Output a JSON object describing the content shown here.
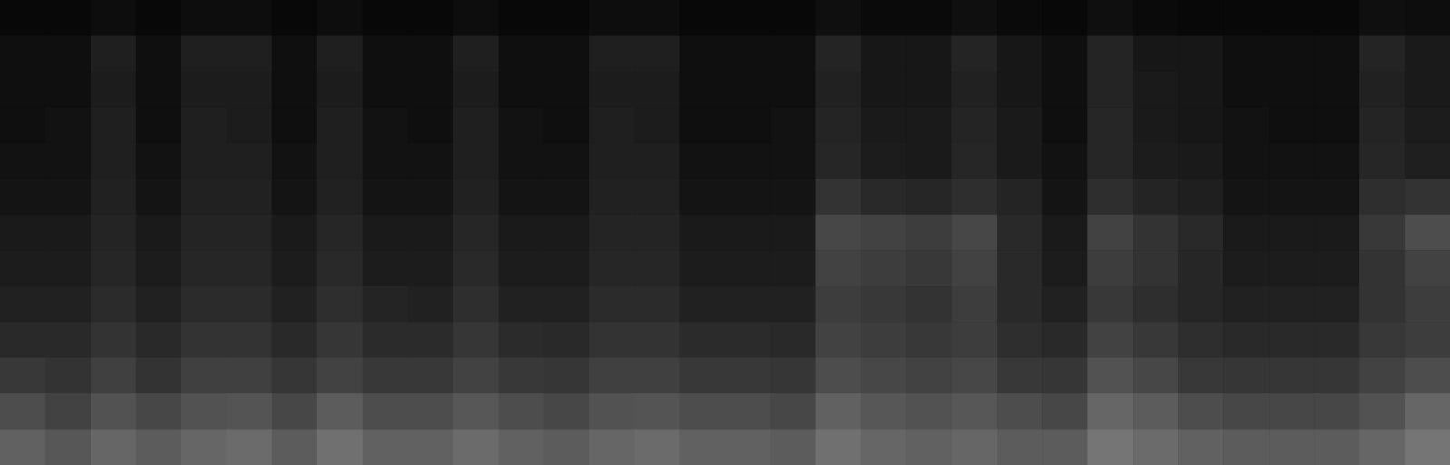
{
  "chart_data": {
    "type": "heatmap",
    "tick_labels": false,
    "zlim": [
      0,
      100
    ],
    "z": [
      [
        3,
        3,
        5,
        3,
        5,
        5,
        3,
        5,
        3,
        3,
        5,
        3,
        3,
        5,
        5,
        3,
        3,
        3,
        6,
        4,
        4,
        6,
        4,
        3,
        6,
        4,
        3,
        3,
        3,
        3,
        6,
        5
      ],
      [
        6,
        6,
        12,
        6,
        12,
        12,
        6,
        12,
        6,
        6,
        12,
        6,
        6,
        12,
        12,
        6,
        6,
        6,
        14,
        9,
        9,
        14,
        9,
        6,
        14,
        9,
        9,
        6,
        6,
        6,
        14,
        10
      ],
      [
        6,
        6,
        11,
        6,
        11,
        11,
        6,
        11,
        6,
        6,
        11,
        6,
        6,
        11,
        11,
        6,
        6,
        6,
        13,
        9,
        9,
        13,
        9,
        6,
        14,
        10,
        9,
        6,
        6,
        6,
        13,
        10
      ],
      [
        6,
        7,
        12,
        6,
        12,
        11,
        6,
        12,
        7,
        6,
        12,
        7,
        6,
        12,
        11,
        6,
        6,
        7,
        14,
        10,
        10,
        14,
        10,
        6,
        15,
        10,
        9,
        7,
        6,
        6,
        14,
        11
      ],
      [
        7,
        7,
        12,
        7,
        12,
        12,
        7,
        12,
        7,
        7,
        12,
        7,
        7,
        12,
        12,
        7,
        7,
        7,
        15,
        11,
        10,
        15,
        10,
        7,
        15,
        11,
        10,
        7,
        7,
        7,
        15,
        12
      ],
      [
        8,
        8,
        13,
        8,
        13,
        13,
        8,
        13,
        8,
        8,
        13,
        8,
        8,
        13,
        13,
        8,
        8,
        8,
        20,
        16,
        15,
        18,
        14,
        8,
        18,
        14,
        12,
        8,
        8,
        8,
        18,
        20
      ],
      [
        10,
        10,
        14,
        10,
        14,
        14,
        10,
        15,
        10,
        10,
        15,
        10,
        10,
        14,
        14,
        10,
        10,
        10,
        28,
        26,
        24,
        28,
        16,
        10,
        26,
        20,
        16,
        10,
        10,
        10,
        22,
        30
      ],
      [
        11,
        11,
        15,
        11,
        15,
        15,
        11,
        16,
        11,
        11,
        16,
        11,
        11,
        15,
        15,
        11,
        11,
        11,
        26,
        24,
        22,
        26,
        16,
        11,
        24,
        20,
        15,
        11,
        11,
        11,
        20,
        26
      ],
      [
        13,
        13,
        17,
        13,
        17,
        17,
        13,
        18,
        14,
        13,
        18,
        13,
        13,
        17,
        17,
        13,
        13,
        13,
        24,
        22,
        20,
        24,
        16,
        13,
        22,
        18,
        15,
        13,
        13,
        13,
        20,
        24
      ],
      [
        16,
        16,
        20,
        16,
        20,
        20,
        16,
        21,
        17,
        17,
        21,
        17,
        16,
        20,
        20,
        17,
        17,
        16,
        26,
        24,
        22,
        24,
        18,
        16,
        26,
        22,
        18,
        16,
        16,
        16,
        22,
        24
      ],
      [
        22,
        20,
        25,
        20,
        25,
        25,
        21,
        26,
        22,
        22,
        26,
        22,
        21,
        25,
        25,
        22,
        22,
        21,
        30,
        28,
        26,
        28,
        22,
        21,
        32,
        28,
        22,
        21,
        21,
        21,
        26,
        30
      ],
      [
        30,
        26,
        32,
        28,
        32,
        33,
        28,
        36,
        30,
        30,
        34,
        30,
        28,
        32,
        33,
        30,
        30,
        28,
        38,
        34,
        32,
        34,
        30,
        28,
        40,
        36,
        30,
        28,
        28,
        28,
        32,
        40
      ],
      [
        38,
        34,
        40,
        36,
        40,
        42,
        36,
        44,
        38,
        38,
        42,
        38,
        36,
        40,
        42,
        38,
        38,
        36,
        44,
        40,
        38,
        40,
        36,
        36,
        46,
        42,
        38,
        36,
        36,
        36,
        40,
        46
      ]
    ]
  }
}
